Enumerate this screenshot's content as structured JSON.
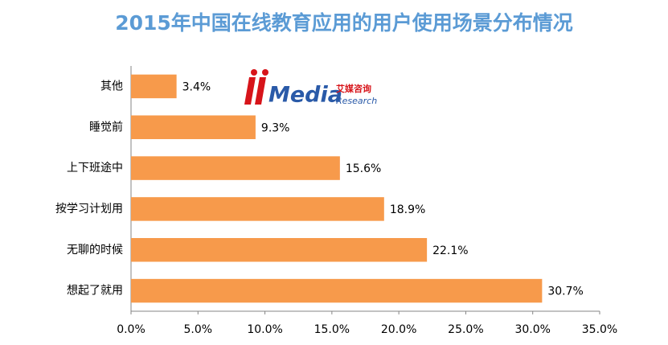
{
  "chart_data": {
    "type": "bar",
    "orientation": "horizontal",
    "title": "2015年中国在线教育应用的用户使用场景分布情况",
    "categories": [
      "其他",
      "睡觉前",
      "上下班途中",
      "按学习计划用",
      "无聊的时候",
      "想起了就用"
    ],
    "values": [
      3.4,
      9.3,
      15.6,
      18.9,
      22.1,
      30.7
    ],
    "value_labels": [
      "3.4%",
      "9.3%",
      "15.6%",
      "18.9%",
      "22.1%",
      "30.7%"
    ],
    "color": "#f79a4b",
    "xlim": [
      0,
      35
    ],
    "xticks": [
      {
        "value": 0,
        "label": "0.0%"
      },
      {
        "value": 5,
        "label": "5.0%"
      },
      {
        "value": 10,
        "label": "10.0%"
      },
      {
        "value": 15,
        "label": "15.0%"
      },
      {
        "value": 20,
        "label": "20.0%"
      },
      {
        "value": 25,
        "label": "25.0%"
      },
      {
        "value": 30,
        "label": "30.0%"
      },
      {
        "value": 35,
        "label": "35.0%"
      }
    ],
    "grid": false,
    "watermark": {
      "brand": "Media",
      "chinese": "艾媒咨询",
      "sub": "Research"
    }
  }
}
